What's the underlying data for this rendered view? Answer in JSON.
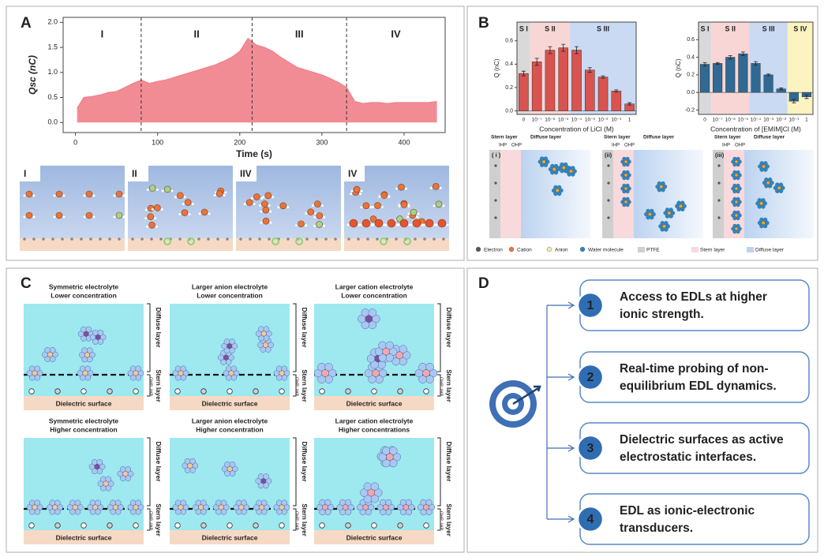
{
  "chart_data": [
    {
      "type": "line",
      "xlabel": "Time (s)",
      "ylabel": "Qsc (nC)",
      "x": [
        2,
        10,
        20,
        30,
        40,
        50,
        60,
        70,
        80,
        90,
        100,
        110,
        120,
        130,
        140,
        150,
        160,
        170,
        180,
        190,
        200,
        210,
        220,
        230,
        240,
        250,
        260,
        270,
        280,
        290,
        300,
        310,
        320,
        330,
        340,
        350,
        360,
        370,
        380,
        390,
        400,
        410,
        420,
        430,
        440
      ],
      "series": [
        {
          "color": "#f07f8a",
          "values": [
            0.28,
            0.5,
            0.52,
            0.55,
            0.6,
            0.62,
            0.7,
            0.78,
            0.85,
            0.78,
            0.82,
            0.85,
            0.9,
            0.95,
            1.0,
            1.05,
            1.1,
            1.15,
            1.22,
            1.3,
            1.42,
            1.68,
            1.55,
            1.5,
            1.42,
            1.3,
            1.2,
            1.1,
            1.05,
            1.0,
            0.95,
            0.88,
            0.8,
            0.7,
            0.42,
            0.38,
            0.4,
            0.4,
            0.38,
            0.4,
            0.4,
            0.4,
            0.4,
            0.4,
            0.42
          ]
        }
      ],
      "xlim": [
        -15,
        450
      ],
      "ylim": [
        -0.2,
        2.1
      ],
      "xticks": [
        0,
        100,
        200,
        300,
        400
      ],
      "yticks": [
        {
          "value": 0,
          "label": "0.0"
        },
        {
          "value": 0.5,
          "label": "0.5"
        },
        {
          "value": 1,
          "label": "1.0"
        },
        {
          "value": 1.5,
          "label": "1.5"
        },
        {
          "value": 2,
          "label": "2.0"
        }
      ],
      "stage_boundaries": [
        80,
        215,
        330
      ],
      "stage_labels": [
        "I",
        "II",
        "III",
        "IV"
      ]
    },
    {
      "type": "bar",
      "xlabel": "Concentration of LiCl (M)",
      "ylabel": "Q (nC)",
      "categories": [
        "0",
        "10⁻⁷",
        "10⁻⁶",
        "10⁻⁵",
        "10⁻⁴",
        "10⁻³",
        "10⁻²",
        "10⁻¹",
        "1"
      ],
      "values": [
        0.32,
        0.42,
        0.52,
        0.54,
        0.52,
        0.35,
        0.29,
        0.17,
        0.06
      ],
      "errors": [
        0.02,
        0.03,
        0.03,
        0.03,
        0.03,
        0.02,
        0.01,
        0.01,
        0.01
      ],
      "color": "#d9534f",
      "ylim": [
        -0.03,
        0.76
      ],
      "yticks": [
        {
          "value": 0,
          "label": "0.0"
        },
        0.2,
        0.4,
        0.6
      ],
      "regions": [
        {
          "label": "S I",
          "start": "0",
          "end": "0",
          "color": "#d9d9d9",
          "text_color": "#222"
        },
        {
          "label": "S II",
          "start": "10⁻⁷",
          "end": "10⁻⁵",
          "color": "#f9d6d6",
          "text_color": "#c0392b"
        },
        {
          "label": "S III",
          "start": "10⁻⁴",
          "end": "1",
          "color": "#cbdaf3",
          "text_color": "#2a4fa8"
        }
      ]
    },
    {
      "type": "bar",
      "xlabel": "Concentration of [EMIM]Cl (M)",
      "ylabel": "Q (nC)",
      "categories": [
        "0",
        "10⁻⁷",
        "10⁻⁶",
        "10⁻⁵",
        "10⁻⁴",
        "10⁻³",
        "10⁻²",
        "10⁻¹",
        "1"
      ],
      "values": [
        0.32,
        0.33,
        0.4,
        0.44,
        0.33,
        0.2,
        0.04,
        -0.1,
        -0.05
      ],
      "errors": [
        0.02,
        0.01,
        0.02,
        0.02,
        0.02,
        0.01,
        0.01,
        0.02,
        0.02
      ],
      "color": "#2e6a94",
      "ylim": [
        -0.25,
        0.8
      ],
      "yticks": [
        -0.2,
        {
          "value": 0,
          "label": "0.0"
        },
        0.2,
        0.4,
        0.6
      ],
      "regions": [
        {
          "label": "S I",
          "start": "0",
          "end": "0",
          "color": "#d9d9d9",
          "text_color": "#222"
        },
        {
          "label": "S II",
          "start": "10⁻⁷",
          "end": "10⁻⁵",
          "color": "#f9d6d6",
          "text_color": "#c0392b"
        },
        {
          "label": "S III",
          "start": "10⁻⁴",
          "end": "10⁻²",
          "color": "#cbdaf3",
          "text_color": "#2a4fa8"
        },
        {
          "label": "S IV",
          "start": "10⁻¹",
          "end": "1",
          "color": "#fbf3c0",
          "text_color": "#d4a017"
        }
      ]
    }
  ],
  "panel_labels": [
    "A",
    "B",
    "C",
    "D"
  ],
  "panel_a_schematics": {
    "labels": [
      "I",
      "II",
      "IIV",
      "IV"
    ]
  },
  "panel_b_schematic": {
    "panels": [
      {
        "label": "( i )",
        "stern": "Stern layer",
        "diffuse": "Diffuse layer",
        "ihp": "IHP",
        "ohp": "OHP"
      },
      {
        "label": "(ii)",
        "stern": "Stern layer",
        "diffuse": "Diffuse layer",
        "ihp": "IHP",
        "ohp": "OHP"
      },
      {
        "label": "(iii)",
        "stern": "Stern layer",
        "diffuse": "Diffuse layer",
        "ihp": "IHP",
        "ohp": "OHP"
      }
    ],
    "legend": [
      "Electron",
      "Cation",
      "Anion",
      "Water molecule",
      "PTFE",
      "Stern layer",
      "Diffuse layer"
    ]
  },
  "panel_c": {
    "cells": [
      {
        "title": [
          "Symmetric electrolyte",
          "Lower concentration"
        ],
        "diffuse": "Diffuse layer",
        "stern": "Stern layer",
        "ohp": "OHP",
        "ihp": "IHP",
        "surface": "Dielectric surface"
      },
      {
        "title": [
          "Larger anion electrolyte",
          "Lower concentration"
        ],
        "diffuse": "Diffuse layer",
        "stern": "Stern layer",
        "ohp": "OHP",
        "ihp": "IHP",
        "surface": "Dielectric surface"
      },
      {
        "title": [
          "Larger cation electrolyte",
          "Lower concentration"
        ],
        "diffuse": "Diffuse layer",
        "stern": "Stern layer",
        "ohp": "OHP",
        "ihp": "IHP",
        "surface": "Dielectric surface"
      },
      {
        "title": [
          "Symmetric electrolyte",
          "Higher concentration"
        ],
        "diffuse": "Diffuse layer",
        "stern": "Stern layer",
        "ohp": "OHP",
        "ihp": "IHP",
        "surface": "Dielectric surface"
      },
      {
        "title": [
          "Larger anion electrolyte",
          "Higher concentration"
        ],
        "diffuse": "Diffuse layer",
        "stern": "Stern layer",
        "ohp": "OHP",
        "ihp": "IHP",
        "surface": "Dielectric surface"
      },
      {
        "title": [
          "Larger cation electrolyte",
          "Higher concentrations"
        ],
        "diffuse": "Diffuse layer",
        "stern": "Stern layer",
        "ohp": "OHP",
        "ihp": "IHP",
        "surface": "Dielectric surface"
      }
    ]
  },
  "panel_d": {
    "items": [
      {
        "number": "1",
        "text": [
          "Access to EDLs at higher",
          "ionic strength."
        ]
      },
      {
        "number": "2",
        "text": [
          "Real-time probing of non-",
          "equilibrium EDL dynamics."
        ]
      },
      {
        "number": "3",
        "text": [
          "Dielectric surfaces as active",
          "electrostatic interfaces."
        ]
      },
      {
        "number": "4",
        "text": [
          "EDL as ionic-electronic",
          "transducers."
        ]
      }
    ]
  }
}
